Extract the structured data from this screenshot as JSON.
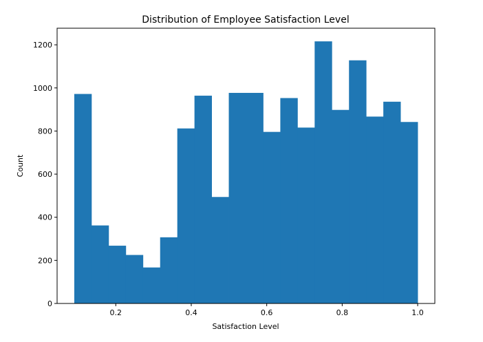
{
  "chart_data": {
    "type": "bar",
    "title": "Distribution of Employee Satisfaction Level",
    "xlabel": "Satisfaction Level",
    "ylabel": "Count",
    "bin_edges": [
      0.09,
      0.1355,
      0.181,
      0.2265,
      0.272,
      0.3175,
      0.363,
      0.4085,
      0.454,
      0.4995,
      0.545,
      0.5905,
      0.636,
      0.6815,
      0.727,
      0.7725,
      0.818,
      0.8635,
      0.909,
      0.9545,
      1.0
    ],
    "values": [
      972,
      362,
      268,
      225,
      167,
      307,
      812,
      964,
      494,
      977,
      977,
      796,
      953,
      816,
      1216,
      898,
      1128,
      867,
      936,
      842
    ],
    "xlim": [
      0.0445,
      1.0455
    ],
    "ylim": [
      0,
      1277
    ],
    "xticks": [
      0.2,
      0.4,
      0.6,
      0.8,
      1.0
    ],
    "xtick_labels": [
      "0.2",
      "0.4",
      "0.6",
      "0.8",
      "1.0"
    ],
    "yticks": [
      0,
      200,
      400,
      600,
      800,
      1000,
      1200
    ],
    "ytick_labels": [
      "0",
      "200",
      "400",
      "600",
      "800",
      "1000",
      "1200"
    ],
    "bar_color": "#1f77b4",
    "grid": false,
    "legend": "none"
  }
}
